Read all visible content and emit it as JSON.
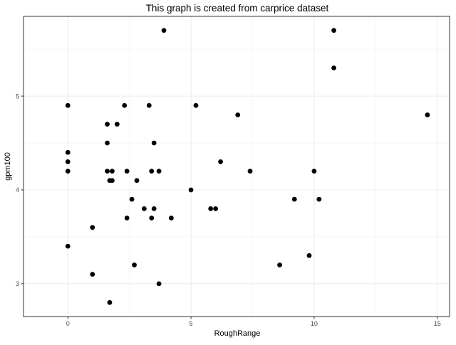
{
  "chart_data": {
    "type": "scatter",
    "title": "This graph is created from carprice dataset",
    "xlabel": "RoughRange",
    "ylabel": "gpm100",
    "xlim": [
      -1.8,
      15.5
    ],
    "ylim": [
      2.65,
      5.85
    ],
    "xticks": [
      0,
      5,
      10,
      15
    ],
    "yticks": [
      3,
      4,
      5
    ],
    "xtick_labels": [
      "0",
      "5",
      "10",
      "15"
    ],
    "ytick_labels": [
      "3",
      "4",
      "5"
    ],
    "grid": true,
    "legend": "none",
    "point_color": "#000000",
    "points": [
      {
        "x": 0.0,
        "y": 4.9
      },
      {
        "x": 0.0,
        "y": 4.4
      },
      {
        "x": 0.0,
        "y": 4.3
      },
      {
        "x": 0.0,
        "y": 4.2
      },
      {
        "x": 0.0,
        "y": 3.4
      },
      {
        "x": 1.0,
        "y": 3.6
      },
      {
        "x": 1.0,
        "y": 3.1
      },
      {
        "x": 1.6,
        "y": 4.7
      },
      {
        "x": 1.6,
        "y": 4.5
      },
      {
        "x": 1.6,
        "y": 4.2
      },
      {
        "x": 1.7,
        "y": 4.1
      },
      {
        "x": 1.7,
        "y": 2.8
      },
      {
        "x": 1.8,
        "y": 4.2
      },
      {
        "x": 1.8,
        "y": 4.1
      },
      {
        "x": 2.0,
        "y": 4.7
      },
      {
        "x": 2.3,
        "y": 4.9
      },
      {
        "x": 2.4,
        "y": 4.2
      },
      {
        "x": 2.4,
        "y": 3.7
      },
      {
        "x": 2.6,
        "y": 3.9
      },
      {
        "x": 2.7,
        "y": 3.2
      },
      {
        "x": 2.8,
        "y": 4.1
      },
      {
        "x": 3.1,
        "y": 3.8
      },
      {
        "x": 3.3,
        "y": 4.9
      },
      {
        "x": 3.4,
        "y": 4.2
      },
      {
        "x": 3.4,
        "y": 3.7
      },
      {
        "x": 3.5,
        "y": 4.5
      },
      {
        "x": 3.5,
        "y": 3.8
      },
      {
        "x": 3.7,
        "y": 4.2
      },
      {
        "x": 3.7,
        "y": 3.0
      },
      {
        "x": 3.9,
        "y": 5.7
      },
      {
        "x": 4.2,
        "y": 3.7
      },
      {
        "x": 5.0,
        "y": 4.0
      },
      {
        "x": 5.2,
        "y": 4.9
      },
      {
        "x": 5.8,
        "y": 3.8
      },
      {
        "x": 6.0,
        "y": 3.8
      },
      {
        "x": 6.2,
        "y": 4.3
      },
      {
        "x": 6.9,
        "y": 4.8
      },
      {
        "x": 7.4,
        "y": 4.2
      },
      {
        "x": 8.6,
        "y": 3.2
      },
      {
        "x": 9.2,
        "y": 3.9
      },
      {
        "x": 9.8,
        "y": 3.3
      },
      {
        "x": 10.0,
        "y": 4.2
      },
      {
        "x": 10.2,
        "y": 3.9
      },
      {
        "x": 10.8,
        "y": 5.7
      },
      {
        "x": 10.8,
        "y": 5.3
      },
      {
        "x": 14.6,
        "y": 4.8
      }
    ]
  }
}
